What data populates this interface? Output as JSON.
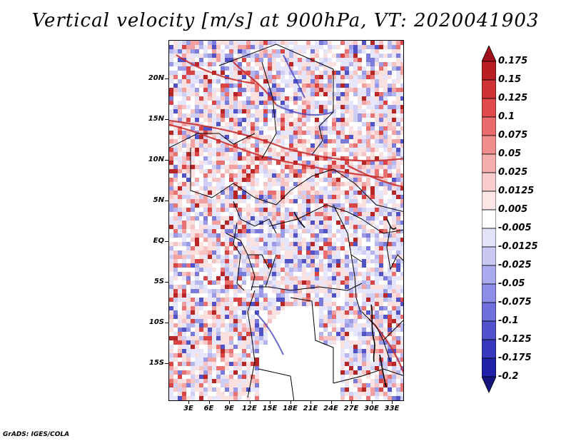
{
  "title": "Vertical velocity [m/s] at 900hPa, VT: 2020041903",
  "footer": "GrADS: IGES/COLA",
  "colors": {
    "positive_strong": "#a51c1c",
    "positive_light": "#f7c6c6",
    "negative_light": "#c9c9f5",
    "negative_strong": "#1c1c9e",
    "boundary": "#000000"
  },
  "lat_labels": [
    "20N",
    "15N",
    "10N",
    "5N",
    "EQ",
    "5S",
    "10S",
    "15S"
  ],
  "lon_labels": [
    "3E",
    "6E",
    "9E",
    "12E",
    "15E",
    "18E",
    "21E",
    "24E",
    "27E",
    "30E",
    "33E"
  ],
  "legend": {
    "levels": [
      "0.175",
      "0.15",
      "0.125",
      "0.1",
      "0.075",
      "0.05",
      "0.025",
      "0.0125",
      "0.005",
      "-0.005",
      "-0.0125",
      "-0.025",
      "-0.05",
      "-0.075",
      "-0.1",
      "-0.125",
      "-0.175",
      "-0.2"
    ],
    "colors": [
      "#a0101a",
      "#b81e22",
      "#cf3232",
      "#e04a4a",
      "#ea6b6b",
      "#f08d8d",
      "#f5aeae",
      "#f9cdcd",
      "#fce6e6",
      "#ffffff",
      "#e3e3fa",
      "#c8c8f3",
      "#aaaaee",
      "#8e8ee6",
      "#7070dc",
      "#5252cf",
      "#3838bf",
      "#2020a8",
      "#14147e"
    ]
  }
}
